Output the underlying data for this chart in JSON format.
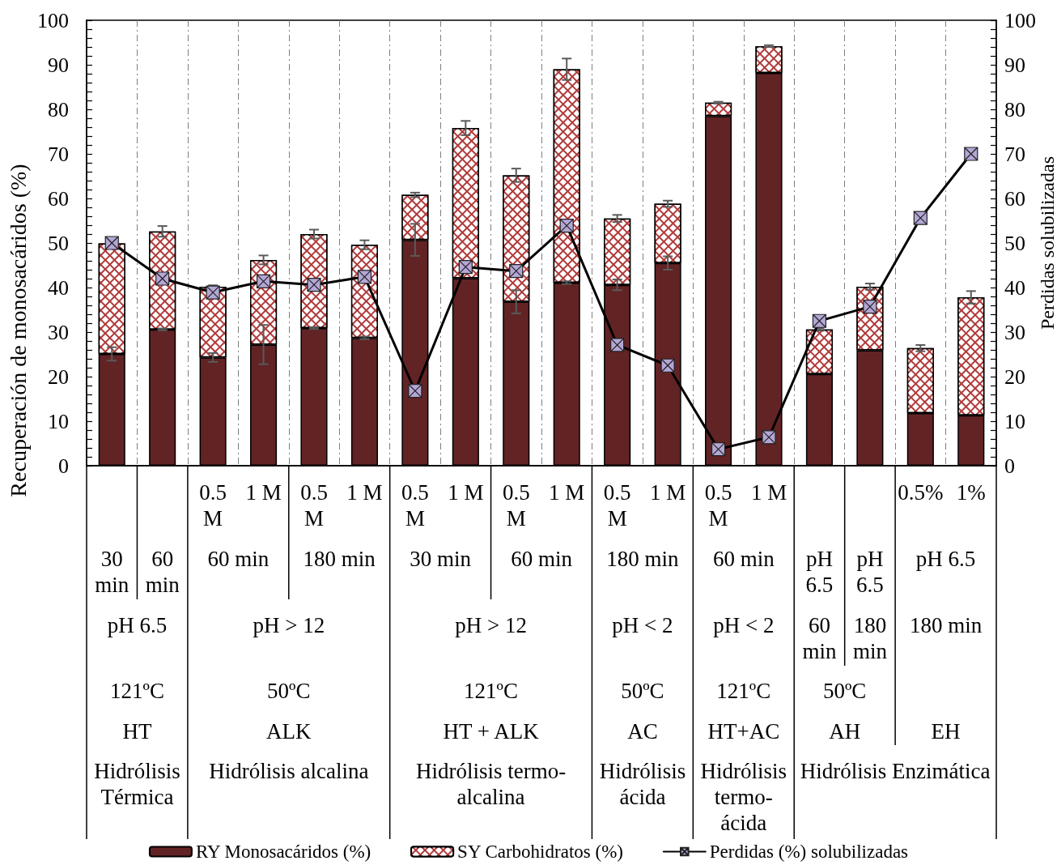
{
  "chart_data": {
    "type": "bar",
    "stacked": true,
    "ylabel": "Recuperación de monosacáridos (%)",
    "y2label": "Perdidas solubilizadas",
    "categories": [
      null,
      null,
      "0.5 M",
      "1 M",
      "0.5 M",
      "1 M",
      "0.5 M",
      "1 M",
      "0.5 M",
      "1 M",
      "0.5 M",
      "1 M",
      "0.5 M",
      "1 M",
      null,
      null,
      "0.5%",
      "1%"
    ],
    "annotations": [
      "30 min",
      "60 min",
      "60 min",
      "180 min",
      "30 min",
      "60 min",
      "180 min",
      "60 min",
      "pH 6.5",
      "pH 6.5",
      "pH 6.5",
      "pH 6.5",
      "pH > 12",
      "pH > 12",
      "pH < 2",
      "pH < 2",
      "60 min",
      "180 min",
      "180 min",
      "121ºC",
      "50ºC",
      "121ºC",
      "50ºC",
      "121ºC",
      "50ºC",
      "HT",
      "ALK",
      "HT + ALK",
      "AC",
      "HT+AC",
      "AH",
      "EH",
      "Hidrólisis Térmica",
      "Hidrólisis alcalina",
      "Hidrólisis termo-alcalina",
      "Hidrólisis ácida",
      "Hidrólisis termo-ácida",
      "Hidrólisis Enzimática"
    ],
    "series": [
      {
        "name": "RY Monosacáridos (%)",
        "color": "#622324",
        "values": [
          25.1,
          30.6,
          24.3,
          27.2,
          30.9,
          28.7,
          50.7,
          42.1,
          36.8,
          41.1,
          40.6,
          45.5,
          78.5,
          88.2,
          20.6,
          25.9,
          11.8,
          11.3
        ],
        "errors": [
          1.5,
          0.2,
          1.0,
          4.4,
          0.2,
          0.3,
          3.6,
          null,
          2.6,
          0.3,
          1.2,
          1.5,
          null,
          null,
          null,
          null,
          null,
          null
        ]
      },
      {
        "name": "SY Carbohidratos (%)",
        "color": "#b03a3a",
        "values": [
          24.8,
          22.0,
          15.9,
          19.0,
          21.1,
          20.9,
          10.1,
          33.7,
          28.4,
          47.9,
          14.9,
          13.3,
          3.0,
          6.0,
          10.0,
          14.3,
          14.6,
          26.5
        ],
        "errors": [
          null,
          1.2,
          0.3,
          1.0,
          1.0,
          1.0,
          0.5,
          1.6,
          1.5,
          2.4,
          0.8,
          0.7,
          0.2,
          0.2,
          0.3,
          0.7,
          0.7,
          1.4
        ]
      },
      {
        "name": "Perdidas (%) solubilizadas",
        "type": "line",
        "axis": "y2",
        "color": "#000000",
        "values": [
          50.0,
          42.0,
          38.9,
          41.4,
          40.6,
          42.4,
          16.8,
          44.6,
          43.7,
          53.9,
          27.1,
          22.5,
          3.7,
          6.4,
          32.5,
          35.7,
          55.6,
          70.0
        ]
      }
    ],
    "ylim": [
      0,
      100
    ],
    "yticks": [
      0,
      {
        "value": 2,
        "label": null
      },
      {
        "value": 4,
        "label": null
      },
      {
        "value": 6,
        "label": null
      },
      {
        "value": 8,
        "label": null
      },
      10,
      {
        "value": 12,
        "label": null
      },
      {
        "value": 14,
        "label": null
      },
      {
        "value": 16,
        "label": null
      },
      {
        "value": 18,
        "label": null
      },
      20,
      {
        "value": 22,
        "label": null
      },
      {
        "value": 24,
        "label": null
      },
      {
        "value": 26,
        "label": null
      },
      {
        "value": 28,
        "label": null
      },
      30,
      {
        "value": 32,
        "label": null
      },
      {
        "value": 34,
        "label": null
      },
      {
        "value": 36,
        "label": null
      },
      {
        "value": 38,
        "label": null
      },
      40,
      {
        "value": 42,
        "label": null
      },
      {
        "value": 44,
        "label": null
      },
      {
        "value": 46,
        "label": null
      },
      {
        "value": 48,
        "label": null
      },
      50,
      {
        "value": 52,
        "label": null
      },
      {
        "value": 54,
        "label": null
      },
      {
        "value": 56,
        "label": null
      },
      {
        "value": 58,
        "label": null
      },
      60,
      {
        "value": 62,
        "label": null
      },
      {
        "value": 64,
        "label": null
      },
      {
        "value": 66,
        "label": null
      },
      {
        "value": 68,
        "label": null
      },
      70,
      {
        "value": 72,
        "label": null
      },
      {
        "value": 74,
        "label": null
      },
      {
        "value": 76,
        "label": null
      },
      {
        "value": 78,
        "label": null
      },
      80,
      {
        "value": 82,
        "label": null
      },
      {
        "value": 84,
        "label": null
      },
      {
        "value": 86,
        "label": null
      },
      {
        "value": 88,
        "label": null
      },
      90,
      {
        "value": 92,
        "label": null
      },
      {
        "value": 94,
        "label": null
      },
      {
        "value": 96,
        "label": null
      },
      {
        "value": 98,
        "label": null
      },
      100
    ],
    "y2lim": [
      0,
      100
    ],
    "y2ticks": [
      0,
      {
        "value": 2,
        "label": null
      },
      {
        "value": 4,
        "label": null
      },
      {
        "value": 6,
        "label": null
      },
      {
        "value": 8,
        "label": null
      },
      10,
      {
        "value": 12,
        "label": null
      },
      {
        "value": 14,
        "label": null
      },
      {
        "value": 16,
        "label": null
      },
      {
        "value": 18,
        "label": null
      },
      20,
      {
        "value": 22,
        "label": null
      },
      {
        "value": 24,
        "label": null
      },
      {
        "value": 26,
        "label": null
      },
      {
        "value": 28,
        "label": null
      },
      30,
      {
        "value": 32,
        "label": null
      },
      {
        "value": 34,
        "label": null
      },
      {
        "value": 36,
        "label": null
      },
      {
        "value": 38,
        "label": null
      },
      40,
      {
        "value": 42,
        "label": null
      },
      {
        "value": 44,
        "label": null
      },
      {
        "value": 46,
        "label": null
      },
      {
        "value": 48,
        "label": null
      },
      50,
      {
        "value": 52,
        "label": null
      },
      {
        "value": 54,
        "label": null
      },
      {
        "value": 56,
        "label": null
      },
      {
        "value": 58,
        "label": null
      },
      60,
      {
        "value": 62,
        "label": null
      },
      {
        "value": 64,
        "label": null
      },
      {
        "value": 66,
        "label": null
      },
      {
        "value": 68,
        "label": null
      },
      70,
      {
        "value": 72,
        "label": null
      },
      {
        "value": 74,
        "label": null
      },
      {
        "value": 76,
        "label": null
      },
      {
        "value": 78,
        "label": null
      },
      80,
      {
        "value": 82,
        "label": null
      },
      {
        "value": 84,
        "label": null
      },
      {
        "value": 86,
        "label": null
      },
      {
        "value": 88,
        "label": null
      },
      90,
      {
        "value": 92,
        "label": null
      },
      {
        "value": 94,
        "label": null
      },
      {
        "value": 96,
        "label": null
      },
      {
        "value": 98,
        "label": null
      },
      100
    ],
    "grid": "x",
    "legend": "bottom",
    "marker": "cross"
  }
}
